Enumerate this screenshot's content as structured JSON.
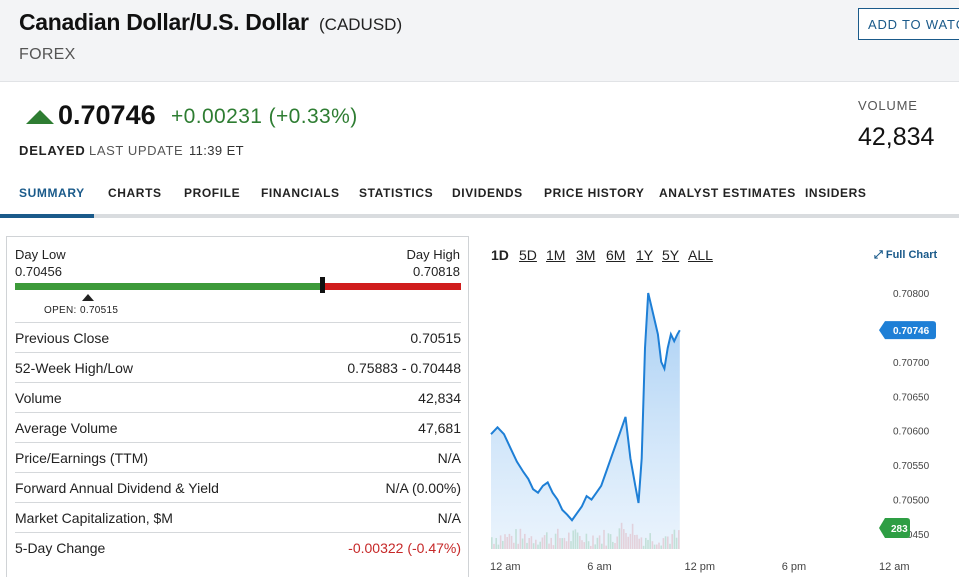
{
  "header": {
    "title": "Canadian Dollar/U.S. Dollar",
    "ticker": "(CADUSD)",
    "category": "FOREX",
    "watch_label": "ADD TO WATCHLIST"
  },
  "quote": {
    "price": "0.70746",
    "change": "+0.00231 (+0.33%)",
    "delayed": "DELAYED",
    "last_update_label": "LAST UPDATE",
    "last_update_time": "11:39 ET",
    "volume_label": "VOLUME",
    "volume_value": "42,834"
  },
  "tabs": [
    "SUMMARY",
    "CHARTS",
    "PROFILE",
    "FINANCIALS",
    "STATISTICS",
    "DIVIDENDS",
    "PRICE HISTORY",
    "ANALYST ESTIMATES",
    "INSIDERS"
  ],
  "range": {
    "day_low_label": "Day Low",
    "day_low": "0.70456",
    "day_high_label": "Day High",
    "day_high": "0.70818",
    "open_label": "OPEN:",
    "open_value": "0.70515"
  },
  "stats": [
    {
      "label": "Previous Close",
      "value": "0.70515"
    },
    {
      "label": "52-Week High/Low",
      "value": "0.75883 - 0.70448"
    },
    {
      "label": "Volume",
      "value": "42,834"
    },
    {
      "label": "Average Volume",
      "value": "47,681"
    },
    {
      "label": "Price/Earnings (TTM)",
      "value": "N/A"
    },
    {
      "label": "Forward Annual Dividend & Yield",
      "value": "N/A (0.00%)"
    },
    {
      "label": "Market Capitalization, $M",
      "value": "N/A"
    },
    {
      "label": "5-Day Change",
      "value": "-0.00322 (-0.47%)"
    }
  ],
  "chart_ranges": [
    "1D",
    "5D",
    "1M",
    "3M",
    "6M",
    "1Y",
    "5Y",
    "ALL"
  ],
  "full_chart_label": "Full Chart",
  "colors": {
    "accent": "#1a5a8a",
    "up": "#2e7d32",
    "down": "#c62828",
    "line": "#1e7fd6"
  },
  "chart_data": {
    "type": "line",
    "y_ticks": [
      "0.70800",
      "0.70750",
      "0.70700",
      "0.70650",
      "0.70600",
      "0.70550",
      "0.70500",
      "0.70450"
    ],
    "ylim": [
      0.7045,
      0.708
    ],
    "x_ticks": [
      "12 am",
      "6 am",
      "12 pm",
      "6 pm",
      "12 am"
    ],
    "current_price_label": "0.70746",
    "volume_badge": "283",
    "x_hours": [
      0,
      0.4,
      0.8,
      1.2,
      1.6,
      2.0,
      2.3,
      2.6,
      2.9,
      3.2,
      3.5,
      3.8,
      4.1,
      4.4,
      4.7,
      5.0,
      5.3,
      5.6,
      5.9,
      6.2,
      6.5,
      6.8,
      7.1,
      7.4,
      7.7,
      8.0,
      8.3,
      8.6,
      8.9,
      9.1,
      9.3,
      9.5,
      9.7,
      9.9,
      10.1,
      10.3,
      10.5,
      10.7,
      10.9,
      11.1,
      11.3,
      11.5,
      11.65
    ],
    "values": [
      0.70595,
      0.70605,
      0.70595,
      0.70575,
      0.70555,
      0.7054,
      0.7053,
      0.70515,
      0.7051,
      0.7052,
      0.70525,
      0.7051,
      0.705,
      0.70485,
      0.70478,
      0.7047,
      0.7048,
      0.7049,
      0.70505,
      0.705,
      0.7051,
      0.7052,
      0.7054,
      0.7056,
      0.7058,
      0.706,
      0.7062,
      0.7056,
      0.7052,
      0.70495,
      0.7056,
      0.7072,
      0.708,
      0.7078,
      0.7076,
      0.7074,
      0.707,
      0.7069,
      0.7072,
      0.7074,
      0.7073,
      0.7074,
      0.70746
    ]
  }
}
